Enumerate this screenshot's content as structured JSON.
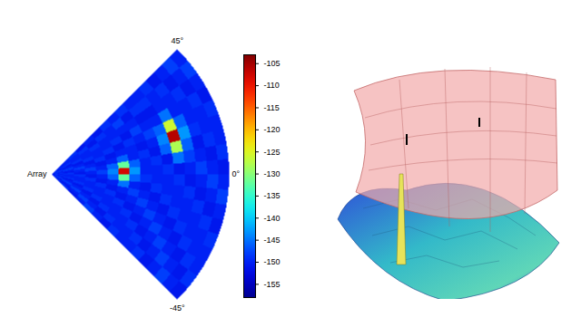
{
  "chart_data": {
    "type": "heatmap",
    "origin_label": "Array",
    "angle_labels": [
      {
        "value": 45,
        "label": "45°"
      },
      {
        "value": 0,
        "label": "0°"
      },
      {
        "value": -45,
        "label": "-45°"
      }
    ],
    "angle_edges": [
      -45,
      -40,
      -35,
      -30,
      -25,
      -20,
      -15,
      -10,
      -5,
      0,
      5,
      10,
      15,
      20,
      25,
      30,
      35,
      40,
      45
    ],
    "range_edges": [
      0,
      1,
      2,
      3,
      4,
      5,
      6,
      7,
      8,
      9,
      10,
      11,
      12,
      13,
      14,
      15,
      16
    ],
    "cells": [
      [
        -150,
        -149,
        -151,
        -150,
        -148,
        -150,
        -151,
        -149,
        -150,
        -150,
        -149,
        -151,
        -150,
        -148,
        -150,
        -151,
        -149,
        -150
      ],
      [
        -149,
        -151,
        -150,
        -148,
        -150,
        -151,
        -149,
        -150,
        -150,
        -149,
        -151,
        -150,
        -148,
        -150,
        -151,
        -149,
        -150,
        -150
      ],
      [
        -151,
        -150,
        -148,
        -150,
        -151,
        -149,
        -150,
        -150,
        -149,
        -151,
        -150,
        -148,
        -150,
        -151,
        -149,
        -150,
        -150,
        -149
      ],
      [
        -150,
        -148,
        -150,
        -151,
        -149,
        -150,
        -150,
        -149,
        -151,
        -150,
        -148,
        -150,
        -151,
        -149,
        -150,
        -150,
        -149,
        -151
      ],
      [
        -148,
        -150,
        -151,
        -149,
        -150,
        -150,
        -149,
        -151,
        -150,
        -148,
        -150,
        -151,
        -149,
        -150,
        -150,
        -149,
        -151,
        -150
      ],
      [
        -150,
        -151,
        -149,
        -150,
        -150,
        -149,
        -151,
        -150,
        -146,
        -144,
        -146,
        -150,
        -151,
        -149,
        -150,
        -150,
        -149,
        -151
      ],
      [
        -151,
        -149,
        -150,
        -150,
        -149,
        -151,
        -150,
        -145,
        -132,
        -108,
        -132,
        -146,
        -150,
        -151,
        -149,
        -150,
        -150,
        -149
      ],
      [
        -149,
        -150,
        -150,
        -149,
        -151,
        -150,
        -148,
        -150,
        -146,
        -143,
        -146,
        -150,
        -150,
        -149,
        -151,
        -150,
        -148,
        -150
      ],
      [
        -150,
        -150,
        -149,
        -151,
        -150,
        -148,
        -150,
        -151,
        -149,
        -150,
        -150,
        -149,
        -151,
        -150,
        -148,
        -150,
        -151,
        -149
      ],
      [
        -150,
        -149,
        -151,
        -150,
        -148,
        -150,
        -151,
        -149,
        -150,
        -150,
        -149,
        -151,
        -150,
        -148,
        -150,
        -151,
        -149,
        -150
      ],
      [
        -149,
        -151,
        -150,
        -148,
        -150,
        -151,
        -149,
        -150,
        -150,
        -149,
        -151,
        -146,
        -144,
        -146,
        -150,
        -151,
        -149,
        -150
      ],
      [
        -151,
        -150,
        -148,
        -150,
        -151,
        -149,
        -150,
        -150,
        -149,
        -151,
        -145,
        -128,
        -106,
        -126,
        -145,
        -150,
        -150,
        -149
      ],
      [
        -150,
        -148,
        -150,
        -151,
        -149,
        -150,
        -150,
        -149,
        -151,
        -150,
        -148,
        -146,
        -143,
        -146,
        -150,
        -150,
        -149,
        -151
      ],
      [
        -148,
        -150,
        -151,
        -149,
        -150,
        -150,
        -149,
        -151,
        -150,
        -148,
        -150,
        -151,
        -149,
        -150,
        -150,
        -149,
        -151,
        -150
      ],
      [
        -150,
        -151,
        -149,
        -150,
        -150,
        -149,
        -151,
        -150,
        -148,
        -150,
        -151,
        -149,
        -150,
        -150,
        -149,
        -151,
        -150,
        -148
      ],
      [
        -151,
        -149,
        -150,
        -150,
        -149,
        -151,
        -150,
        -148,
        -150,
        -151,
        -149,
        -150,
        -150,
        -149,
        -151,
        -150,
        -148,
        -150
      ]
    ],
    "clim": [
      -158,
      -103
    ],
    "cticks": [
      -105,
      -110,
      -115,
      -120,
      -125,
      -130,
      -135,
      -140,
      -145,
      -150,
      -155
    ]
  }
}
